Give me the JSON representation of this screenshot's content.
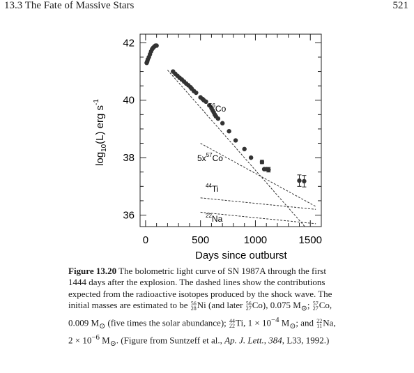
{
  "header": {
    "running_head": "13.3   The Fate of Massive Stars",
    "page_number": "521"
  },
  "chart_data": {
    "type": "scatter",
    "xlabel": "Days since outburst",
    "ylabel": "log10(L) erg s^-1",
    "xlim": [
      -50,
      1600
    ],
    "ylim": [
      35.6,
      42.3
    ],
    "xticks": [
      0,
      500,
      1000,
      1500
    ],
    "yticks": [
      36,
      38,
      40,
      42
    ],
    "x_tick_labels": [
      "0",
      "500",
      "1000",
      "1500"
    ],
    "y_tick_labels": [
      "36",
      "38",
      "40",
      "42"
    ],
    "series": [
      {
        "name": "SN 1987A",
        "x": [
          10,
          15,
          20,
          30,
          40,
          50,
          60,
          70,
          80,
          90,
          100,
          250,
          270,
          290,
          310,
          330,
          350,
          370,
          390,
          410,
          420,
          440,
          460,
          500,
          520,
          530,
          550,
          580,
          600,
          610,
          620,
          630,
          640,
          660,
          700,
          760,
          820,
          900,
          960,
          1060,
          1080,
          1100,
          1120,
          1400,
          1444
        ],
        "y": [
          41.3,
          41.35,
          41.42,
          41.5,
          41.6,
          41.7,
          41.78,
          41.83,
          41.87,
          41.9,
          41.9,
          41.0,
          40.92,
          40.85,
          40.78,
          40.72,
          40.65,
          40.58,
          40.52,
          40.45,
          40.4,
          40.32,
          40.26,
          40.1,
          40.04,
          40.0,
          39.95,
          39.82,
          39.72,
          39.65,
          39.58,
          39.5,
          39.44,
          39.36,
          39.2,
          38.92,
          38.6,
          38.3,
          38.0,
          37.85,
          37.6,
          37.6,
          37.58,
          37.2,
          37.18
        ],
        "error_bars": [
          {
            "x": 1060,
            "y": 37.85,
            "err": 0.06
          },
          {
            "x": 1120,
            "y": 37.58,
            "err": 0.08
          },
          {
            "x": 1400,
            "y": 37.2,
            "err": 0.2
          },
          {
            "x": 1444,
            "y": 37.18,
            "err": 0.2
          }
        ]
      }
    ],
    "model_curves": [
      {
        "label": "56Co",
        "x": [
          200,
          1450
        ],
        "y": [
          41.05,
          35.6
        ]
      },
      {
        "label": "5x57Co",
        "x": [
          500,
          1550
        ],
        "y": [
          38.5,
          36.3
        ]
      },
      {
        "label": "44Ti",
        "x": [
          500,
          1550
        ],
        "y": [
          36.6,
          36.2
        ]
      },
      {
        "label": "22Na",
        "x": [
          500,
          1550
        ],
        "y": [
          36.1,
          35.7
        ]
      }
    ],
    "curve_labels": [
      {
        "iso": "56",
        "text": "Co"
      },
      {
        "iso": "57",
        "text": "5x",
        "after": "Co"
      },
      {
        "iso": "44",
        "text": "Ti"
      },
      {
        "iso": "22",
        "text": "Na"
      }
    ]
  },
  "caption": {
    "label": "Figure 13.20",
    "line1": " The bolometric light curve of SN 1987A through the first",
    "line2": "1444 days after the explosion.  The dashed lines show the contributions",
    "line3": "expected from the radioactive isotopes produced by the shock wave.  The",
    "line4a": "initial masses are estimated to be ",
    "ni_mass": "56",
    "ni_z": "28",
    "ni_sym": "Ni",
    "line4b": " (and later ",
    "co56_mass": "56",
    "co56_z": "27",
    "co56_sym": "Co), 0.075 M",
    "line4c": "; ",
    "co57_mass": "57",
    "co57_z": "27",
    "co57_sym": "Co,",
    "line5a": "0.009 M",
    "line5b": " (five times the solar abundance); ",
    "ti_mass": "44",
    "ti_z": "22",
    "ti_sym": "Ti, 1 × 10",
    "ti_exp": "−4",
    "line5c": " M",
    "line5d": "; and ",
    "na_mass": "22",
    "na_z": "11",
    "na_sym": "Na,",
    "line6a": "2 × 10",
    "na_exp": "−6",
    "line6b": " M",
    "line6c": ".  (Figure from Suntzeff et al., ",
    "journal": "Ap. J. Lett., 384,",
    "line6d": " L33, 1992.)",
    "sun": "⊙"
  }
}
